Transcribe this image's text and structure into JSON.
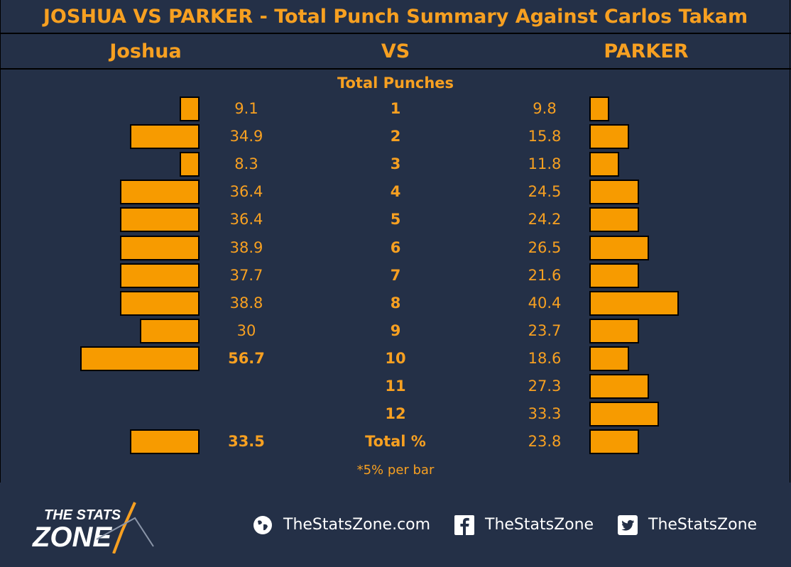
{
  "title": "JOSHUA VS PARKER - Total Punch Summary Against Carlos Takam",
  "header": {
    "left": "Joshua",
    "center": "VS",
    "right": "PARKER"
  },
  "subtitle": "Total Punches",
  "note": "*5% per bar",
  "colors": {
    "background": "#243047",
    "accent": "#f7a021",
    "bar": "#f79b00",
    "line": "#000000"
  },
  "chart_data": {
    "type": "bar",
    "orientation": "horizontal-diverging",
    "categories": [
      "1",
      "2",
      "3",
      "4",
      "5",
      "6",
      "7",
      "8",
      "9",
      "10",
      "11",
      "12",
      "Total %"
    ],
    "series": [
      {
        "name": "Joshua",
        "values": [
          9.1,
          34.9,
          8.3,
          36.4,
          36.4,
          38.9,
          37.7,
          38.8,
          30,
          56.7,
          null,
          null,
          33.5
        ]
      },
      {
        "name": "PARKER",
        "values": [
          9.8,
          15.8,
          11.8,
          24.5,
          24.2,
          26.5,
          21.6,
          40.4,
          23.7,
          18.6,
          27.3,
          33.3,
          23.8
        ]
      }
    ],
    "labels": {
      "joshua": [
        "9.1",
        "34.9",
        "8.3",
        "36.4",
        "36.4",
        "38.9",
        "37.7",
        "38.8",
        "30",
        "56.7",
        "",
        "",
        "33.5"
      ],
      "parker": [
        "9.8",
        "15.8",
        "11.8",
        "24.5",
        "24.2",
        "26.5",
        "21.6",
        "40.4",
        "23.7",
        "18.6",
        "27.3",
        "33.3",
        "23.8"
      ]
    },
    "bar_step_percent": 5,
    "bold": {
      "joshua": [
        false,
        false,
        false,
        false,
        false,
        false,
        false,
        false,
        false,
        true,
        false,
        false,
        true
      ],
      "category": [
        true,
        true,
        true,
        true,
        true,
        true,
        true,
        true,
        true,
        true,
        true,
        true,
        true
      ]
    },
    "grid": false
  },
  "footer": {
    "logo": {
      "line1": "THE STATS",
      "line2": "ZONE"
    },
    "website": "TheStatsZone.com",
    "facebook": "TheStatsZone",
    "twitter": "TheStatsZone",
    "icons": [
      "globe-icon",
      "facebook-icon",
      "twitter-icon"
    ]
  }
}
